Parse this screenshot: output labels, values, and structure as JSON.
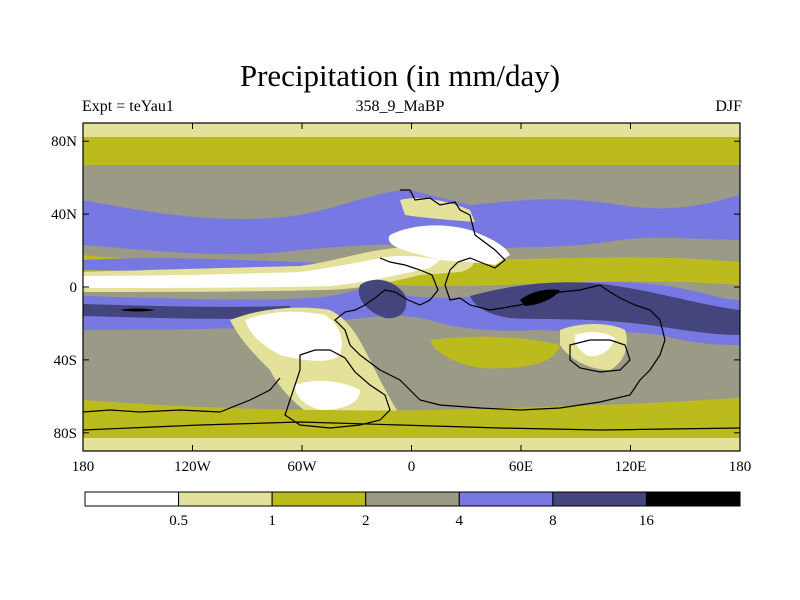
{
  "title": "Precipitation (in mm/day)",
  "subtitle_left": "Expt = teYau1",
  "subtitle_center": "358_9_MaBP",
  "subtitle_right": "DJF",
  "y_axis_labels": [
    "80N",
    "40N",
    "0",
    "40S",
    "80S"
  ],
  "x_axis_labels": [
    "180",
    "120W",
    "60W",
    "0",
    "60E",
    "120E",
    "180"
  ],
  "legend": {
    "colors": [
      "#ffffff",
      "#e4e29a",
      "#bcbb1e",
      "#9b9a86",
      "#7878e2",
      "#45457e",
      "#000000"
    ],
    "labels": [
      "0.5",
      "1",
      "2",
      "4",
      "8",
      "16"
    ]
  }
}
